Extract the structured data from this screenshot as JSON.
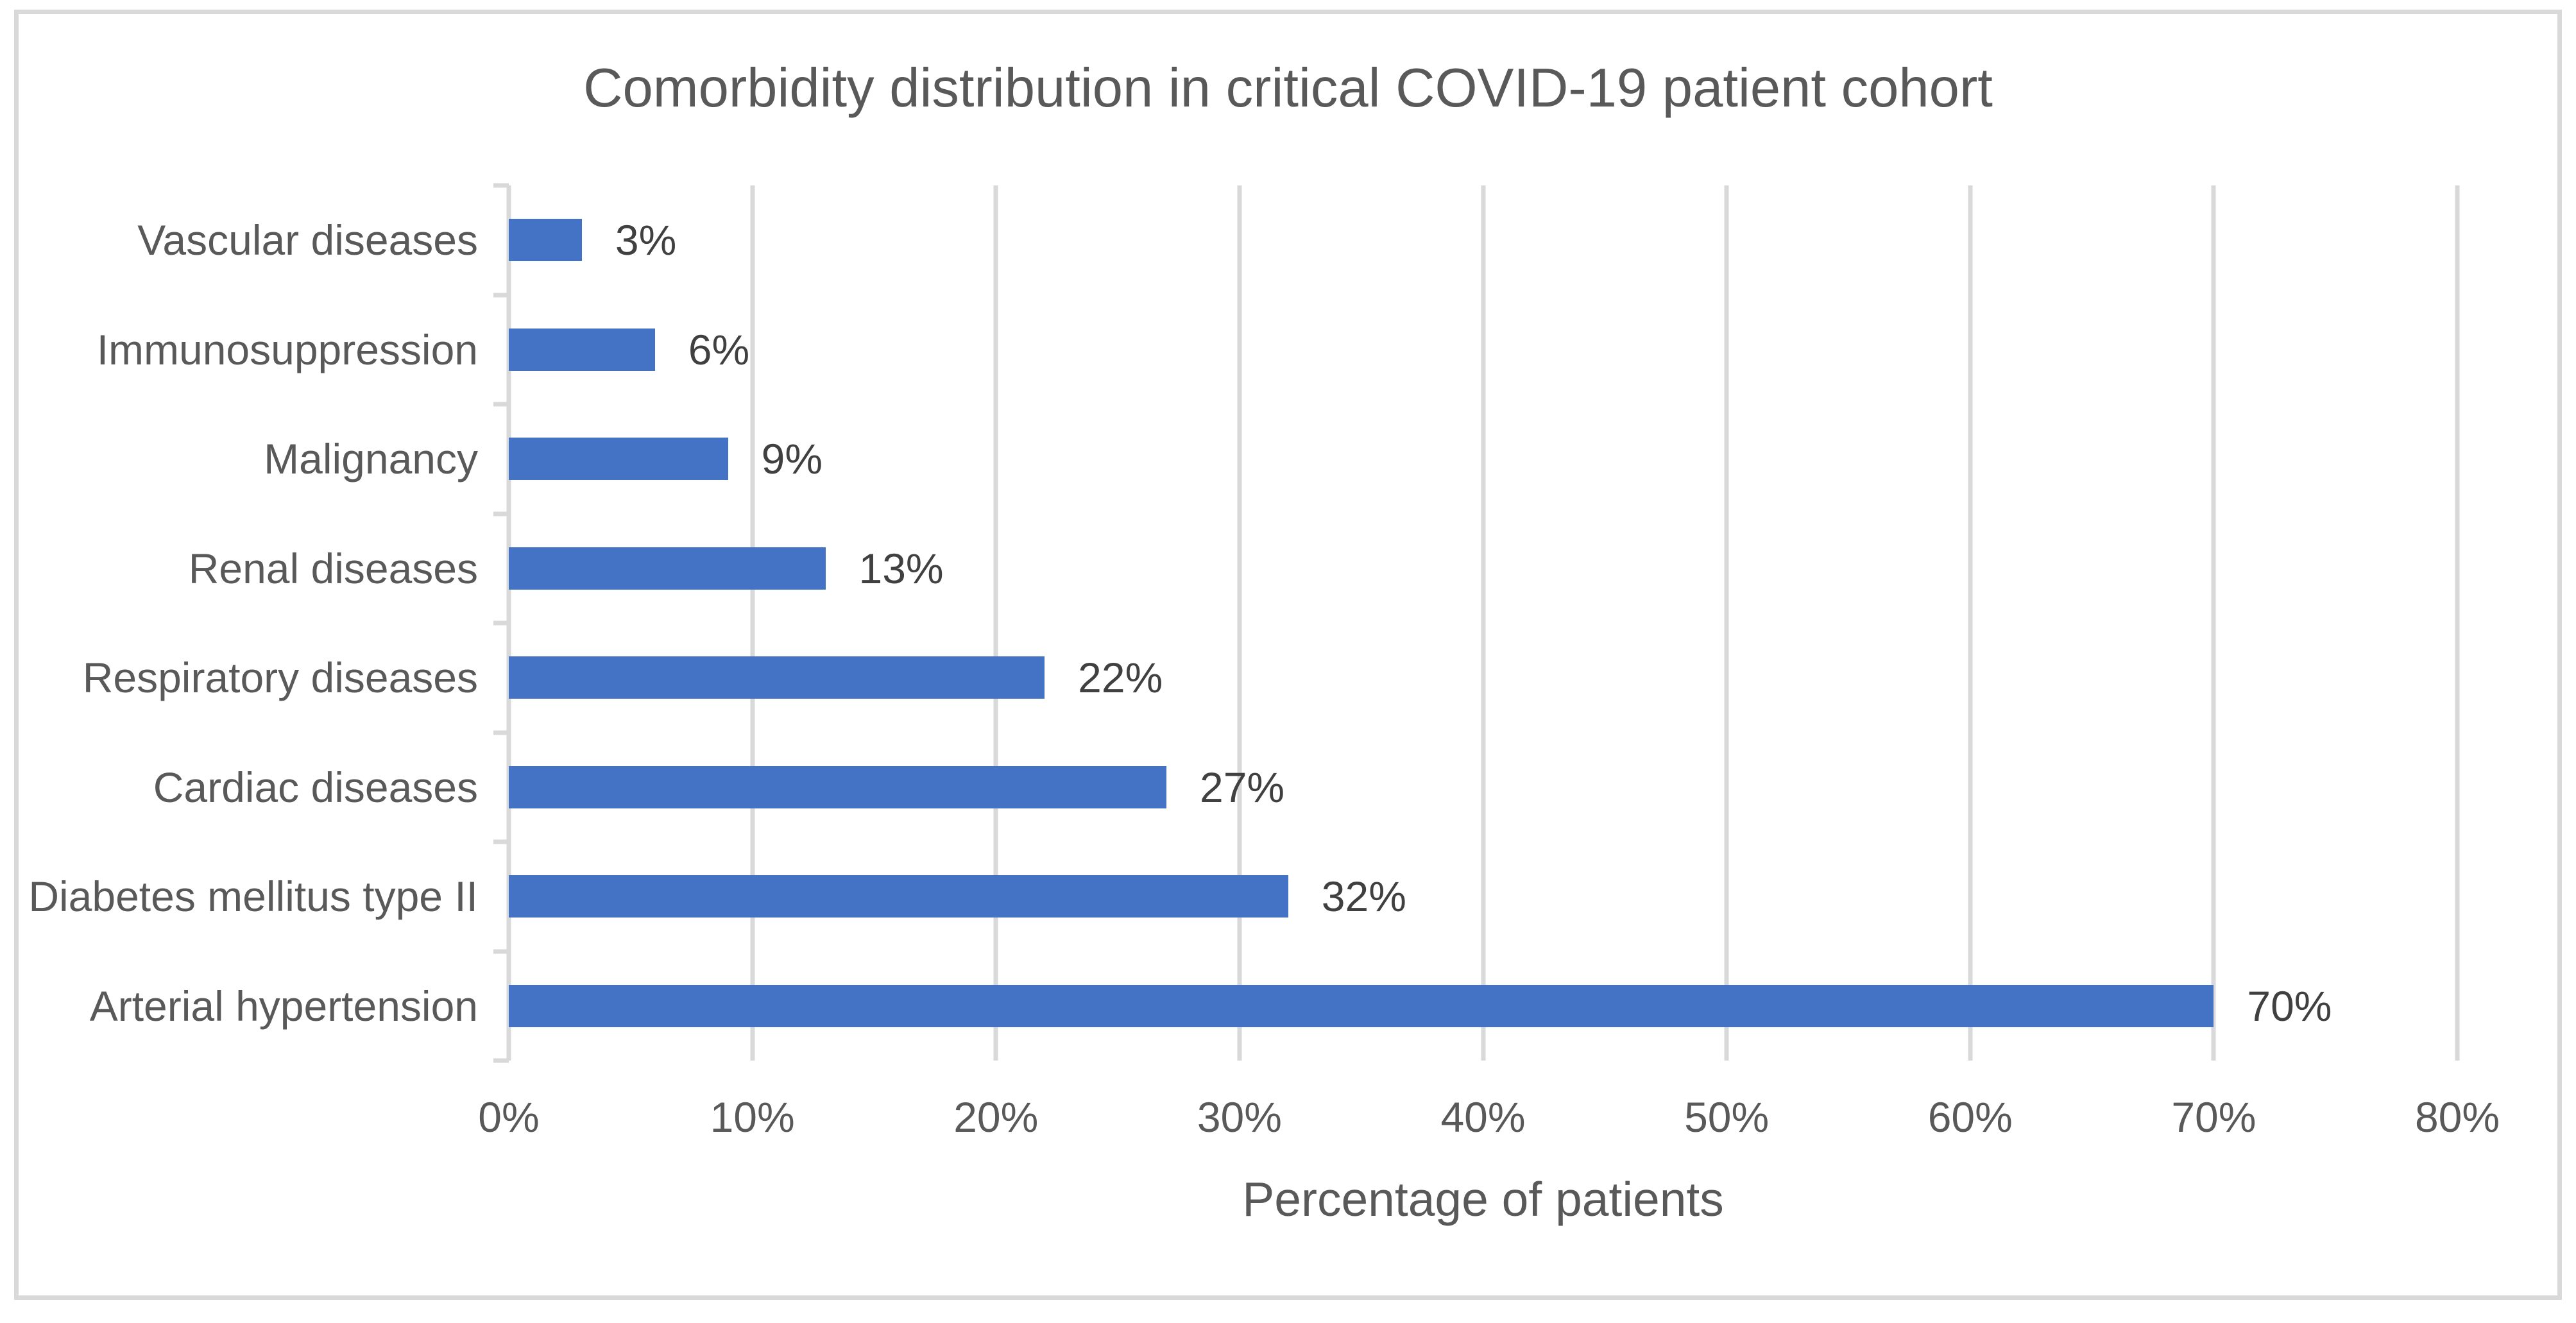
{
  "chart_data": {
    "type": "bar",
    "orientation": "horizontal",
    "title": "Comorbidity distribution in critical COVID-19 patient cohort",
    "xlabel": "Percentage of patients",
    "categories": [
      "Vascular diseases",
      "Immunosuppression",
      "Malignancy",
      "Renal diseases",
      "Respiratory diseases",
      "Cardiac diseases",
      "Diabetes mellitus type II",
      "Arterial hypertension"
    ],
    "values": [
      3,
      6,
      9,
      13,
      22,
      27,
      32,
      70
    ],
    "value_labels": [
      "3%",
      "6%",
      "9%",
      "13%",
      "22%",
      "27%",
      "32%",
      "70%"
    ],
    "xlim": [
      0,
      80
    ],
    "x_tick_labels": [
      "0%",
      "10%",
      "20%",
      "30%",
      "40%",
      "50%",
      "60%",
      "70%",
      "80%"
    ],
    "grid": true,
    "legend": false,
    "colors": {
      "bar": "#4472C4",
      "grid": "#D9D9D9",
      "axis_text": "#595959",
      "value_text": "#404040"
    }
  }
}
